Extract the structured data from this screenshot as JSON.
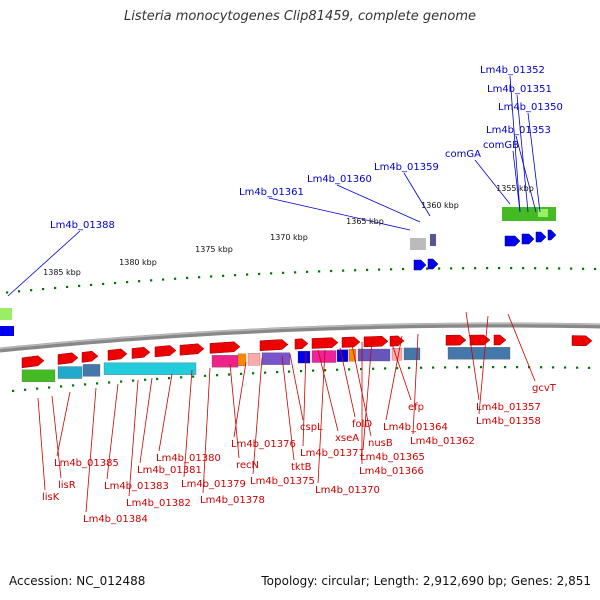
{
  "title": "Listeria monocytogenes Clip81459, complete genome",
  "footer": {
    "accession": "Accession: NC_012488",
    "summary": "Topology: circular; Length: 2,912,690 bp; Genes: 2,851"
  },
  "colors": {
    "forward_label": "#0000cc",
    "reverse_label": "#cc0000",
    "forward_arrow": "#0000ee",
    "reverse_arrow": "#ee0000",
    "tick_green": "#007700",
    "backbone": "#888888"
  },
  "scale_ticks": [
    {
      "label": "1385 kbp"
    },
    {
      "label": "1380 kbp"
    },
    {
      "label": "1375 kbp"
    },
    {
      "label": "1370 kbp"
    },
    {
      "label": "1365 kbp"
    },
    {
      "label": "1360 kbp"
    },
    {
      "label": "1355 kbp"
    }
  ],
  "forward_genes": [
    {
      "label": "Lm4b_01352"
    },
    {
      "label": "Lm4b_01351"
    },
    {
      "label": "Lm4b_01350"
    },
    {
      "label": "Lm4b_01353"
    },
    {
      "label": "comGB"
    },
    {
      "label": "comGA"
    },
    {
      "label": "Lm4b_01359"
    },
    {
      "label": "Lm4b_01360"
    },
    {
      "label": "Lm4b_01361"
    },
    {
      "label": "Lm4b_01388"
    }
  ],
  "reverse_genes": [
    {
      "label": "lisK"
    },
    {
      "label": "lisR"
    },
    {
      "label": "Lm4b_01385"
    },
    {
      "label": "Lm4b_01384"
    },
    {
      "label": "Lm4b_01383"
    },
    {
      "label": "Lm4b_01382"
    },
    {
      "label": "Lm4b_01381"
    },
    {
      "label": "Lm4b_01380"
    },
    {
      "label": "Lm4b_01379"
    },
    {
      "label": "Lm4b_01378"
    },
    {
      "label": "recN"
    },
    {
      "label": "Lm4b_01376"
    },
    {
      "label": "Lm4b_01375"
    },
    {
      "label": "tktB"
    },
    {
      "label": "cspL"
    },
    {
      "label": "Lm4b_01371"
    },
    {
      "label": "xseA"
    },
    {
      "label": "Lm4b_01370"
    },
    {
      "label": "folD"
    },
    {
      "label": "nusB"
    },
    {
      "label": "Lm4b_01366"
    },
    {
      "label": "Lm4b_01365"
    },
    {
      "label": "efp"
    },
    {
      "label": "Lm4b_01364"
    },
    {
      "label": "Lm4b_01362"
    },
    {
      "label": "Lm4b_01357"
    },
    {
      "label": "Lm4b_01358"
    },
    {
      "label": "gcvT"
    }
  ]
}
